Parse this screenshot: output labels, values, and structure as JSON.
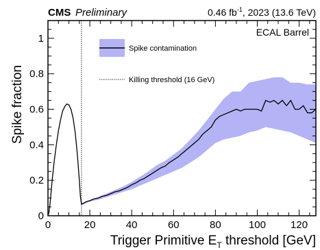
{
  "header": {
    "experiment": "CMS",
    "status": "Preliminary",
    "lumi_value": "0.46 fb",
    "lumi_exp": "-1",
    "lumi_rest": ", 2023 (13.6 TeV)"
  },
  "region_label": "ECAL Barrel",
  "axes": {
    "ylabel": "Spike fraction",
    "xlabel_main": "Trigger Primitive E",
    "xlabel_sub": "T",
    "xlabel_tail": " threshold [GeV]"
  },
  "legend": {
    "contamination": "Spike contamination",
    "threshold": "Killing threshold (16 GeV)"
  },
  "colors": {
    "band": "#b3b3f5",
    "line": "#000000",
    "threshold_line": "#555555"
  },
  "chart_data": {
    "type": "line",
    "xlim": [
      0,
      128
    ],
    "ylim": [
      0,
      1.1
    ],
    "x_ticks": [
      0,
      20,
      40,
      60,
      80,
      100,
      120
    ],
    "y_ticks": [
      0,
      0.2,
      0.4,
      0.6,
      0.8,
      1
    ],
    "y_tick_labels": [
      "0",
      "0.2",
      "0.4",
      "0.6",
      "0.8",
      "1"
    ],
    "grid": false,
    "legend_position": "top-left inside plot",
    "threshold_x": 16,
    "series": [
      {
        "name": "Spike contamination",
        "x": [
          0,
          0.5,
          1,
          2,
          3,
          4,
          5,
          6,
          7,
          8,
          9,
          10,
          11,
          12,
          13,
          14,
          15,
          15.5,
          16,
          17,
          18,
          20,
          22,
          24,
          26,
          28,
          30,
          32,
          34,
          36,
          38,
          40,
          42,
          44,
          46,
          48,
          50,
          52,
          54,
          56,
          58,
          60,
          62,
          64,
          66,
          68,
          70,
          72,
          74,
          76,
          78,
          80,
          82,
          84,
          86,
          88,
          90,
          92,
          94,
          96,
          98,
          100,
          102,
          104,
          106,
          108,
          110,
          112,
          114,
          116,
          118,
          120,
          122,
          124,
          126,
          128
        ],
        "y": [
          0,
          0.02,
          0.07,
          0.2,
          0.31,
          0.4,
          0.48,
          0.54,
          0.59,
          0.615,
          0.63,
          0.625,
          0.6,
          0.55,
          0.47,
          0.35,
          0.2,
          0.11,
          0.065,
          0.07,
          0.078,
          0.085,
          0.095,
          0.1,
          0.11,
          0.115,
          0.125,
          0.135,
          0.14,
          0.15,
          0.16,
          0.175,
          0.185,
          0.2,
          0.21,
          0.225,
          0.24,
          0.255,
          0.27,
          0.28,
          0.3,
          0.315,
          0.33,
          0.35,
          0.37,
          0.39,
          0.41,
          0.43,
          0.46,
          0.48,
          0.5,
          0.54,
          0.56,
          0.57,
          0.58,
          0.59,
          0.6,
          0.59,
          0.6,
          0.6,
          0.6,
          0.6,
          0.59,
          0.65,
          0.64,
          0.65,
          0.63,
          0.65,
          0.62,
          0.65,
          0.6,
          0.6,
          0.62,
          0.58,
          0.58,
          0.6
        ]
      }
    ],
    "band": {
      "name": "Spike contamination",
      "x": [
        16,
        20,
        24,
        28,
        32,
        36,
        40,
        44,
        48,
        52,
        56,
        60,
        64,
        68,
        72,
        76,
        80,
        84,
        88,
        92,
        96,
        100,
        104,
        108,
        112,
        116,
        120,
        124,
        128
      ],
      "low": [
        0.06,
        0.08,
        0.09,
        0.105,
        0.12,
        0.135,
        0.15,
        0.17,
        0.19,
        0.21,
        0.23,
        0.25,
        0.27,
        0.3,
        0.33,
        0.37,
        0.41,
        0.43,
        0.44,
        0.45,
        0.47,
        0.48,
        0.5,
        0.49,
        0.48,
        0.47,
        0.45,
        0.43,
        0.41
      ],
      "high": [
        0.07,
        0.09,
        0.105,
        0.125,
        0.145,
        0.165,
        0.19,
        0.22,
        0.25,
        0.285,
        0.31,
        0.345,
        0.38,
        0.43,
        0.48,
        0.54,
        0.6,
        0.66,
        0.7,
        0.7,
        0.75,
        0.76,
        0.77,
        0.78,
        0.78,
        0.75,
        0.75,
        0.74,
        0.74
      ]
    }
  }
}
